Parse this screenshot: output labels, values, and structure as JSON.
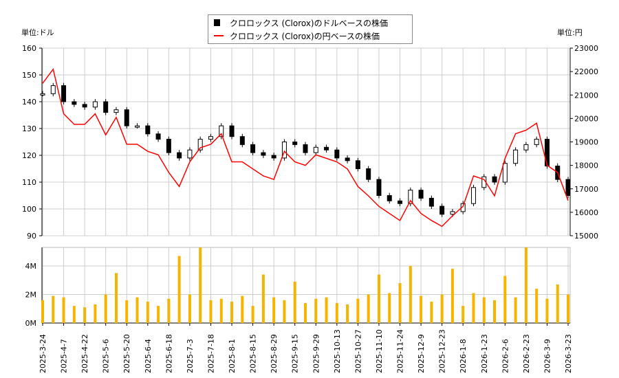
{
  "chart_data": {
    "type": "candlestick+line+bar",
    "left_unit": "単位:ドル",
    "right_unit": "単位:円",
    "legend": [
      {
        "label": "クロロックス (Clorox)のドルベースの株価",
        "color": "#000000",
        "marker": "box"
      },
      {
        "label": "クロロックス (Clorox)の円ベースの株価",
        "color": "#ff0000",
        "marker": "line"
      }
    ],
    "legend_position": "top-center",
    "grid": true,
    "y_left": {
      "min": 90,
      "max": 160,
      "ticks": [
        90,
        100,
        110,
        120,
        130,
        140,
        150,
        160
      ]
    },
    "y_right": {
      "min": 15000,
      "max": 23000,
      "ticks": [
        15000,
        16000,
        17000,
        18000,
        19000,
        20000,
        21000,
        22000,
        23000
      ]
    },
    "y_volume": {
      "min": 0,
      "max": 5.3,
      "ticks": [
        {
          "v": 0,
          "label": "0M"
        },
        {
          "v": 2,
          "label": "2M"
        },
        {
          "v": 4,
          "label": "4M"
        }
      ]
    },
    "x_tick_labels": [
      "2025-3-24",
      "2025-4-7",
      "2025-4-22",
      "2025-5-6",
      "2025-5-20",
      "2025-6-4",
      "2025-6-18",
      "2025-7-3",
      "2025-7-18",
      "2025-8-1",
      "2025-8-15",
      "2025-8-29",
      "2025-9-15",
      "2025-9-29",
      "2025-10-13",
      "2025-10-27",
      "2025-11-10",
      "2025-11-24",
      "2025-12-9",
      "2025-12-23",
      "2026-1-8",
      "2026-1-23",
      "2026-2-6",
      "2026-2-23",
      "2026-3-9",
      "2026-3-23"
    ],
    "usd_close": [
      143,
      146,
      140,
      139,
      138,
      140,
      136,
      137,
      131,
      131,
      128,
      126,
      121,
      119,
      122,
      126,
      127,
      131,
      127,
      124,
      121,
      120,
      119,
      125,
      124,
      121,
      123,
      122,
      119,
      118,
      115,
      111,
      105,
      103,
      102,
      107,
      104,
      101,
      98,
      99,
      102,
      108,
      112,
      110,
      117,
      122,
      124,
      126,
      116,
      111,
      105
    ],
    "jpy_close": [
      21500,
      22100,
      20200,
      19750,
      19750,
      20200,
      19300,
      20050,
      18900,
      18900,
      18600,
      18450,
      17700,
      17100,
      18150,
      18750,
      18900,
      19350,
      18150,
      18150,
      17850,
      17550,
      17400,
      18600,
      18150,
      18000,
      18450,
      18300,
      18150,
      17850,
      17100,
      16700,
      16250,
      15950,
      15650,
      16500,
      15950,
      15650,
      15400,
      15850,
      16250,
      17550,
      17400,
      16700,
      18300,
      19350,
      19500,
      19800,
      18000,
      17700,
      16500
    ],
    "volume_millions": [
      1.6,
      1.9,
      1.8,
      1.2,
      1.1,
      1.3,
      2.0,
      3.5,
      1.6,
      1.8,
      1.5,
      1.2,
      1.7,
      4.7,
      2.0,
      5.3,
      1.6,
      1.7,
      1.5,
      1.9,
      1.2,
      3.4,
      1.8,
      1.6,
      2.9,
      1.4,
      1.7,
      1.8,
      1.4,
      1.3,
      1.7,
      2.0,
      3.4,
      2.1,
      2.8,
      4.0,
      1.9,
      1.5,
      2.0,
      3.8,
      1.2,
      2.1,
      1.8,
      1.6,
      3.3,
      1.8,
      5.3,
      2.4,
      1.7,
      2.7,
      2.0
    ]
  }
}
